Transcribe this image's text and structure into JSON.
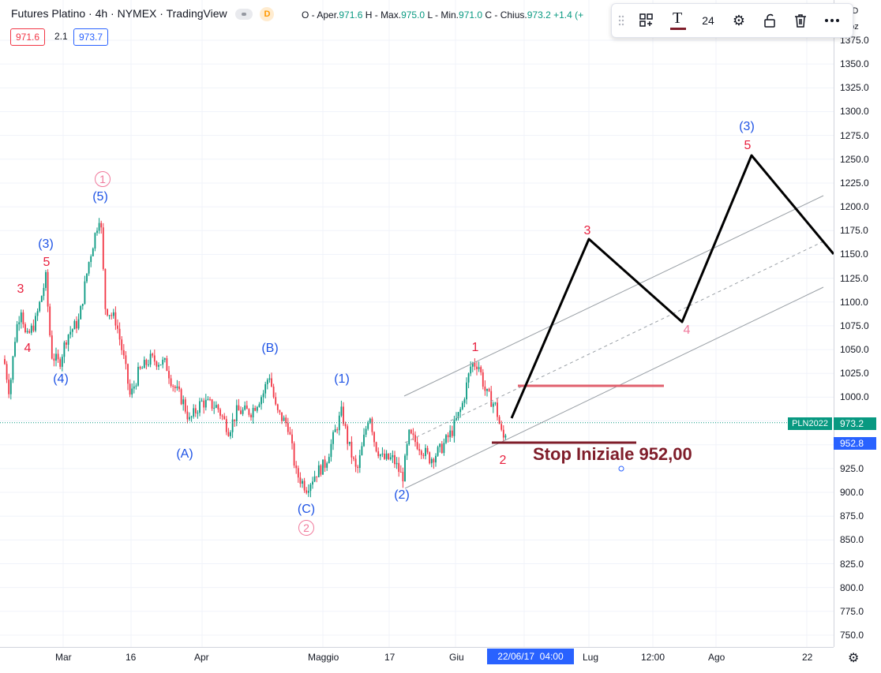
{
  "header": {
    "title": "Futures Platino · 4h · NYMEX · TradingView",
    "delay_badge": "D",
    "ohlc": {
      "open_label": "O - Aper.",
      "open": "971.6",
      "high_label": "H - Max.",
      "high": "975.0",
      "low_label": "L - Min.",
      "low": "971.0",
      "close_label": "C - Chius.",
      "close": "973.2",
      "change": "+1.4 (+"
    },
    "sell_price": "971.6",
    "spread": "2.1",
    "buy_price": "973.7"
  },
  "toolbar": {
    "font_size": "24"
  },
  "price_axis": {
    "currency_top": "SD",
    "unit_top": "doz",
    "ticks": [
      "1375.0",
      "1350.0",
      "1325.0",
      "1300.0",
      "1275.0",
      "1250.0",
      "1225.0",
      "1200.0",
      "1175.0",
      "1150.0",
      "1125.0",
      "1100.0",
      "1075.0",
      "1050.0",
      "1025.0",
      "1000.0",
      "975.0",
      "950.0",
      "925.0",
      "900.0",
      "875.0",
      "850.0",
      "825.0",
      "800.0",
      "775.0",
      "750.0"
    ],
    "symbol_tag": "PLN2022",
    "last_price": "973.2",
    "stop_price": "952.8"
  },
  "time_axis": {
    "labels": [
      "Mar",
      "16",
      "Apr",
      "Maggio",
      "17",
      "Giu",
      "Lug",
      "12:00",
      "Ago",
      "22"
    ],
    "cursor_label": "22/06/17  04:00"
  },
  "annotations": {
    "stop_text": "Stop Iniziale 952,00",
    "waves": {
      "w3_mar": "3",
      "w4_mar": "4",
      "w5_mar": "5",
      "w3_paren": "(3)",
      "w4_paren": "(4)",
      "w5_paren": "(5)",
      "circle1": "1",
      "circle2": "2",
      "wA": "(A)",
      "wB": "(B)",
      "wC": "(C)",
      "w1_paren": "(1)",
      "w2_paren": "(2)",
      "w1_red": "1",
      "w2_red": "2",
      "p3_red": "3",
      "p4_red": "4",
      "p5_red": "5",
      "p3_paren": "(3)"
    }
  },
  "colors": {
    "up": "#089981",
    "down": "#f23645",
    "wave_blue": "#1e53e5",
    "wave_red": "#e8203e",
    "stop_dark": "#7f1d2a",
    "resistance": "#e0606e",
    "last_tag": "#089981",
    "stop_tag": "#2962ff"
  }
}
